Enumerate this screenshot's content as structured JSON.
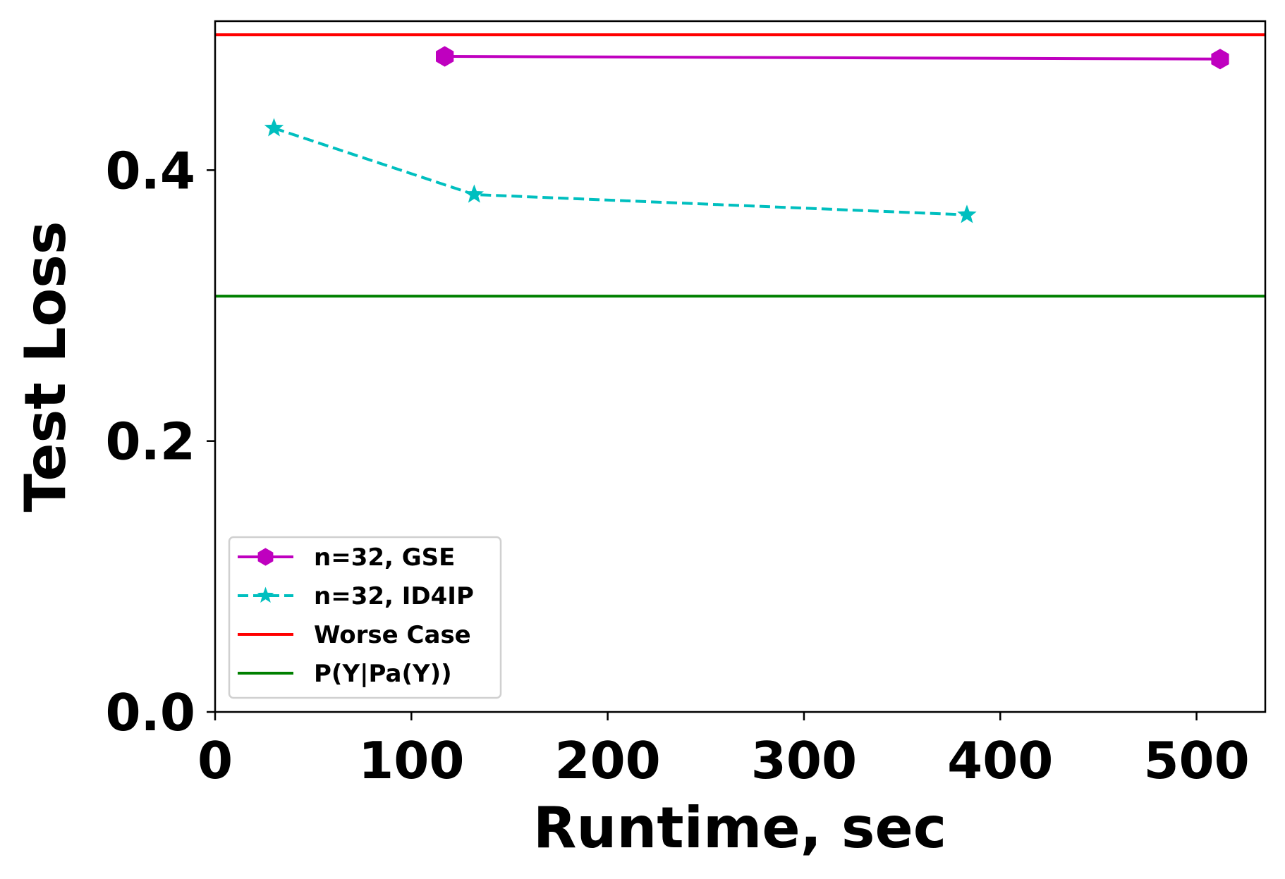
{
  "chart_data": {
    "type": "line",
    "title": "",
    "xlabel": "Runtime, sec",
    "ylabel": "Test Loss",
    "xlim": [
      0,
      535
    ],
    "ylim": [
      0,
      0.51
    ],
    "x_ticks": [
      0,
      100,
      200,
      300,
      400,
      500
    ],
    "y_ticks": [
      0.0,
      0.2,
      0.4
    ],
    "x_tick_labels": [
      "0",
      "100",
      "200",
      "300",
      "400",
      "500"
    ],
    "y_tick_labels": [
      "0.0",
      "0.2",
      "0.4"
    ],
    "grid": false,
    "legend_position": "lower-left",
    "series": [
      {
        "name": "n=32, GSE",
        "color": "#bf00bf",
        "line_style": "solid",
        "marker": "hexagon",
        "points": [
          {
            "x": 117,
            "y": 0.484
          },
          {
            "x": 512,
            "y": 0.482
          }
        ]
      },
      {
        "name": "n=32, ID4IP",
        "color": "#00bfbf",
        "line_style": "dashed",
        "marker": "star",
        "points": [
          {
            "x": 30,
            "y": 0.431
          },
          {
            "x": 132,
            "y": 0.382
          },
          {
            "x": 383,
            "y": 0.367
          }
        ]
      }
    ],
    "reference_lines": [
      {
        "name": "Worse Case",
        "color": "#ff0000",
        "y": 0.5
      },
      {
        "name": "P(Y|Pa(Y))",
        "color": "#008000",
        "y": 0.307
      }
    ]
  }
}
